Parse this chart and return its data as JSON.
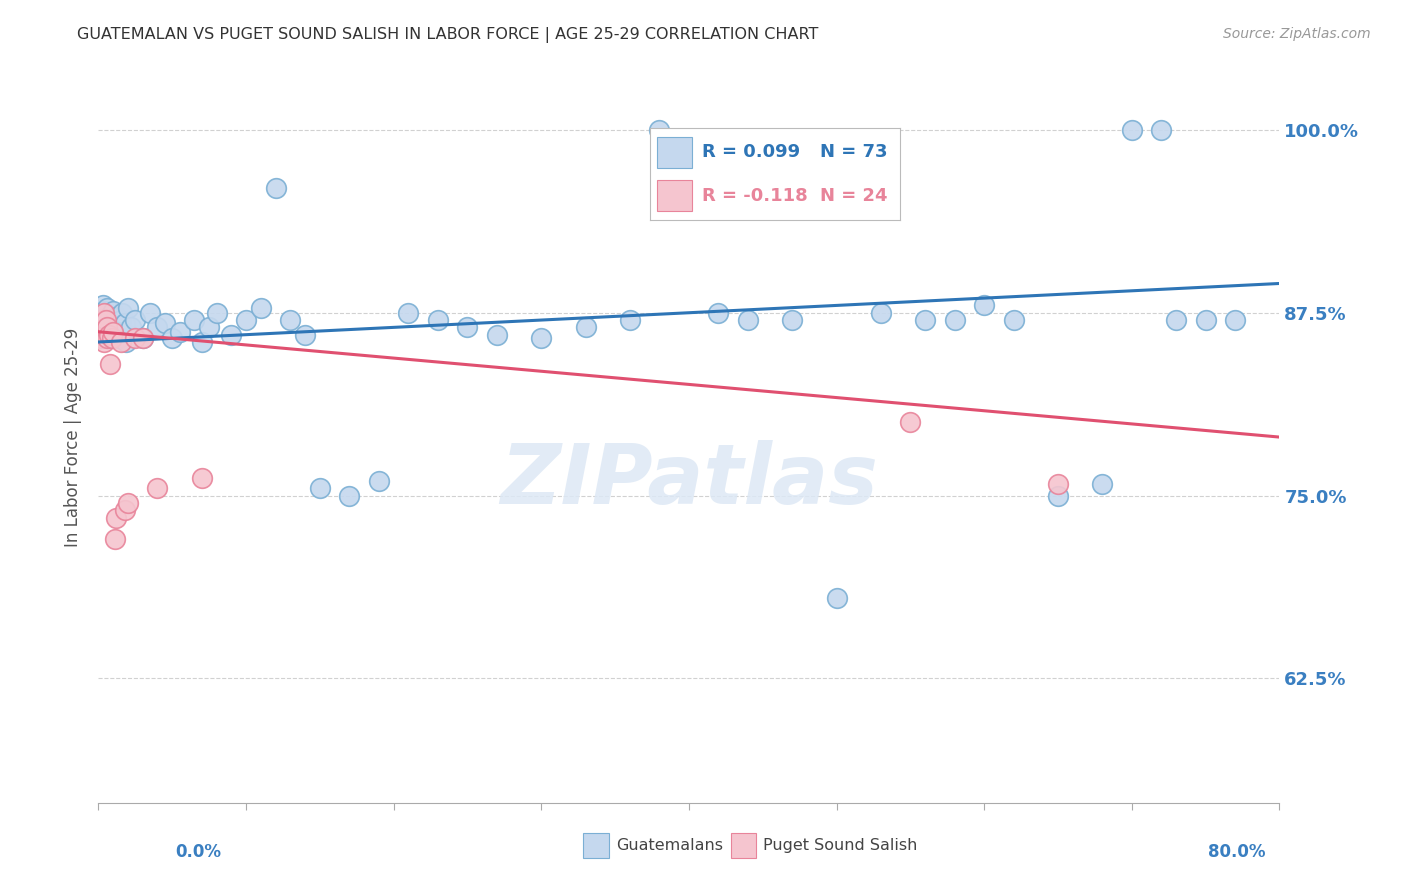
{
  "title": "GUATEMALAN VS PUGET SOUND SALISH IN LABOR FORCE | AGE 25-29 CORRELATION CHART",
  "source": "Source: ZipAtlas.com",
  "ylabel": "In Labor Force | Age 25-29",
  "ytick_labels": [
    "62.5%",
    "75.0%",
    "87.5%",
    "100.0%"
  ],
  "ytick_values": [
    0.625,
    0.75,
    0.875,
    1.0
  ],
  "xlim": [
    0.0,
    0.8
  ],
  "ylim": [
    0.54,
    1.04
  ],
  "legend_r_blue": "R = 0.099",
  "legend_n_blue": "N = 73",
  "legend_r_pink": "R = -0.118",
  "legend_n_pink": "N = 24",
  "blue_fill": "#c5d8ee",
  "blue_edge": "#7bafd4",
  "pink_fill": "#f5c5cf",
  "pink_edge": "#e8849a",
  "blue_line_color": "#2e75b6",
  "pink_line_color": "#e05070",
  "background_color": "#ffffff",
  "grid_color": "#cccccc",
  "axis_label_color": "#3a7fc1",
  "ytick_color": "#3a7fc1",
  "watermark_color": "#dde8f5",
  "blue_x": [
    0.001,
    0.002,
    0.002,
    0.003,
    0.003,
    0.004,
    0.004,
    0.005,
    0.005,
    0.006,
    0.006,
    0.007,
    0.007,
    0.008,
    0.008,
    0.009,
    0.01,
    0.01,
    0.011,
    0.012,
    0.013,
    0.014,
    0.015,
    0.016,
    0.017,
    0.018,
    0.019,
    0.02,
    0.022,
    0.025,
    0.03,
    0.035,
    0.04,
    0.045,
    0.05,
    0.055,
    0.065,
    0.07,
    0.075,
    0.08,
    0.09,
    0.1,
    0.11,
    0.12,
    0.13,
    0.14,
    0.15,
    0.17,
    0.19,
    0.21,
    0.23,
    0.25,
    0.27,
    0.3,
    0.33,
    0.36,
    0.38,
    0.42,
    0.44,
    0.47,
    0.5,
    0.53,
    0.56,
    0.58,
    0.6,
    0.62,
    0.65,
    0.68,
    0.7,
    0.72,
    0.73,
    0.75,
    0.77
  ],
  "blue_y": [
    0.87,
    0.865,
    0.875,
    0.862,
    0.88,
    0.868,
    0.876,
    0.86,
    0.872,
    0.866,
    0.878,
    0.858,
    0.87,
    0.865,
    0.873,
    0.862,
    0.868,
    0.876,
    0.86,
    0.872,
    0.865,
    0.858,
    0.87,
    0.875,
    0.862,
    0.868,
    0.855,
    0.878,
    0.865,
    0.87,
    0.858,
    0.875,
    0.865,
    0.868,
    0.858,
    0.862,
    0.87,
    0.855,
    0.865,
    0.875,
    0.86,
    0.87,
    0.878,
    0.96,
    0.87,
    0.86,
    0.755,
    0.75,
    0.76,
    0.875,
    0.87,
    0.865,
    0.86,
    0.858,
    0.865,
    0.87,
    1.0,
    0.875,
    0.87,
    0.87,
    0.68,
    0.875,
    0.87,
    0.87,
    0.88,
    0.87,
    0.75,
    0.758,
    1.0,
    1.0,
    0.87,
    0.87,
    0.87
  ],
  "pink_x": [
    0.001,
    0.002,
    0.003,
    0.004,
    0.004,
    0.005,
    0.005,
    0.006,
    0.006,
    0.007,
    0.008,
    0.009,
    0.01,
    0.011,
    0.012,
    0.015,
    0.018,
    0.02,
    0.025,
    0.03,
    0.04,
    0.07,
    0.55,
    0.65
  ],
  "pink_y": [
    0.858,
    0.862,
    0.87,
    0.855,
    0.875,
    0.862,
    0.87,
    0.858,
    0.865,
    0.86,
    0.84,
    0.858,
    0.862,
    0.72,
    0.735,
    0.855,
    0.74,
    0.745,
    0.858,
    0.858,
    0.755,
    0.762,
    0.8,
    0.758
  ],
  "blue_trend_x": [
    0.0,
    0.8
  ],
  "blue_trend_y": [
    0.855,
    0.895
  ],
  "pink_trend_x": [
    0.0,
    0.8
  ],
  "pink_trend_y": [
    0.862,
    0.79
  ]
}
